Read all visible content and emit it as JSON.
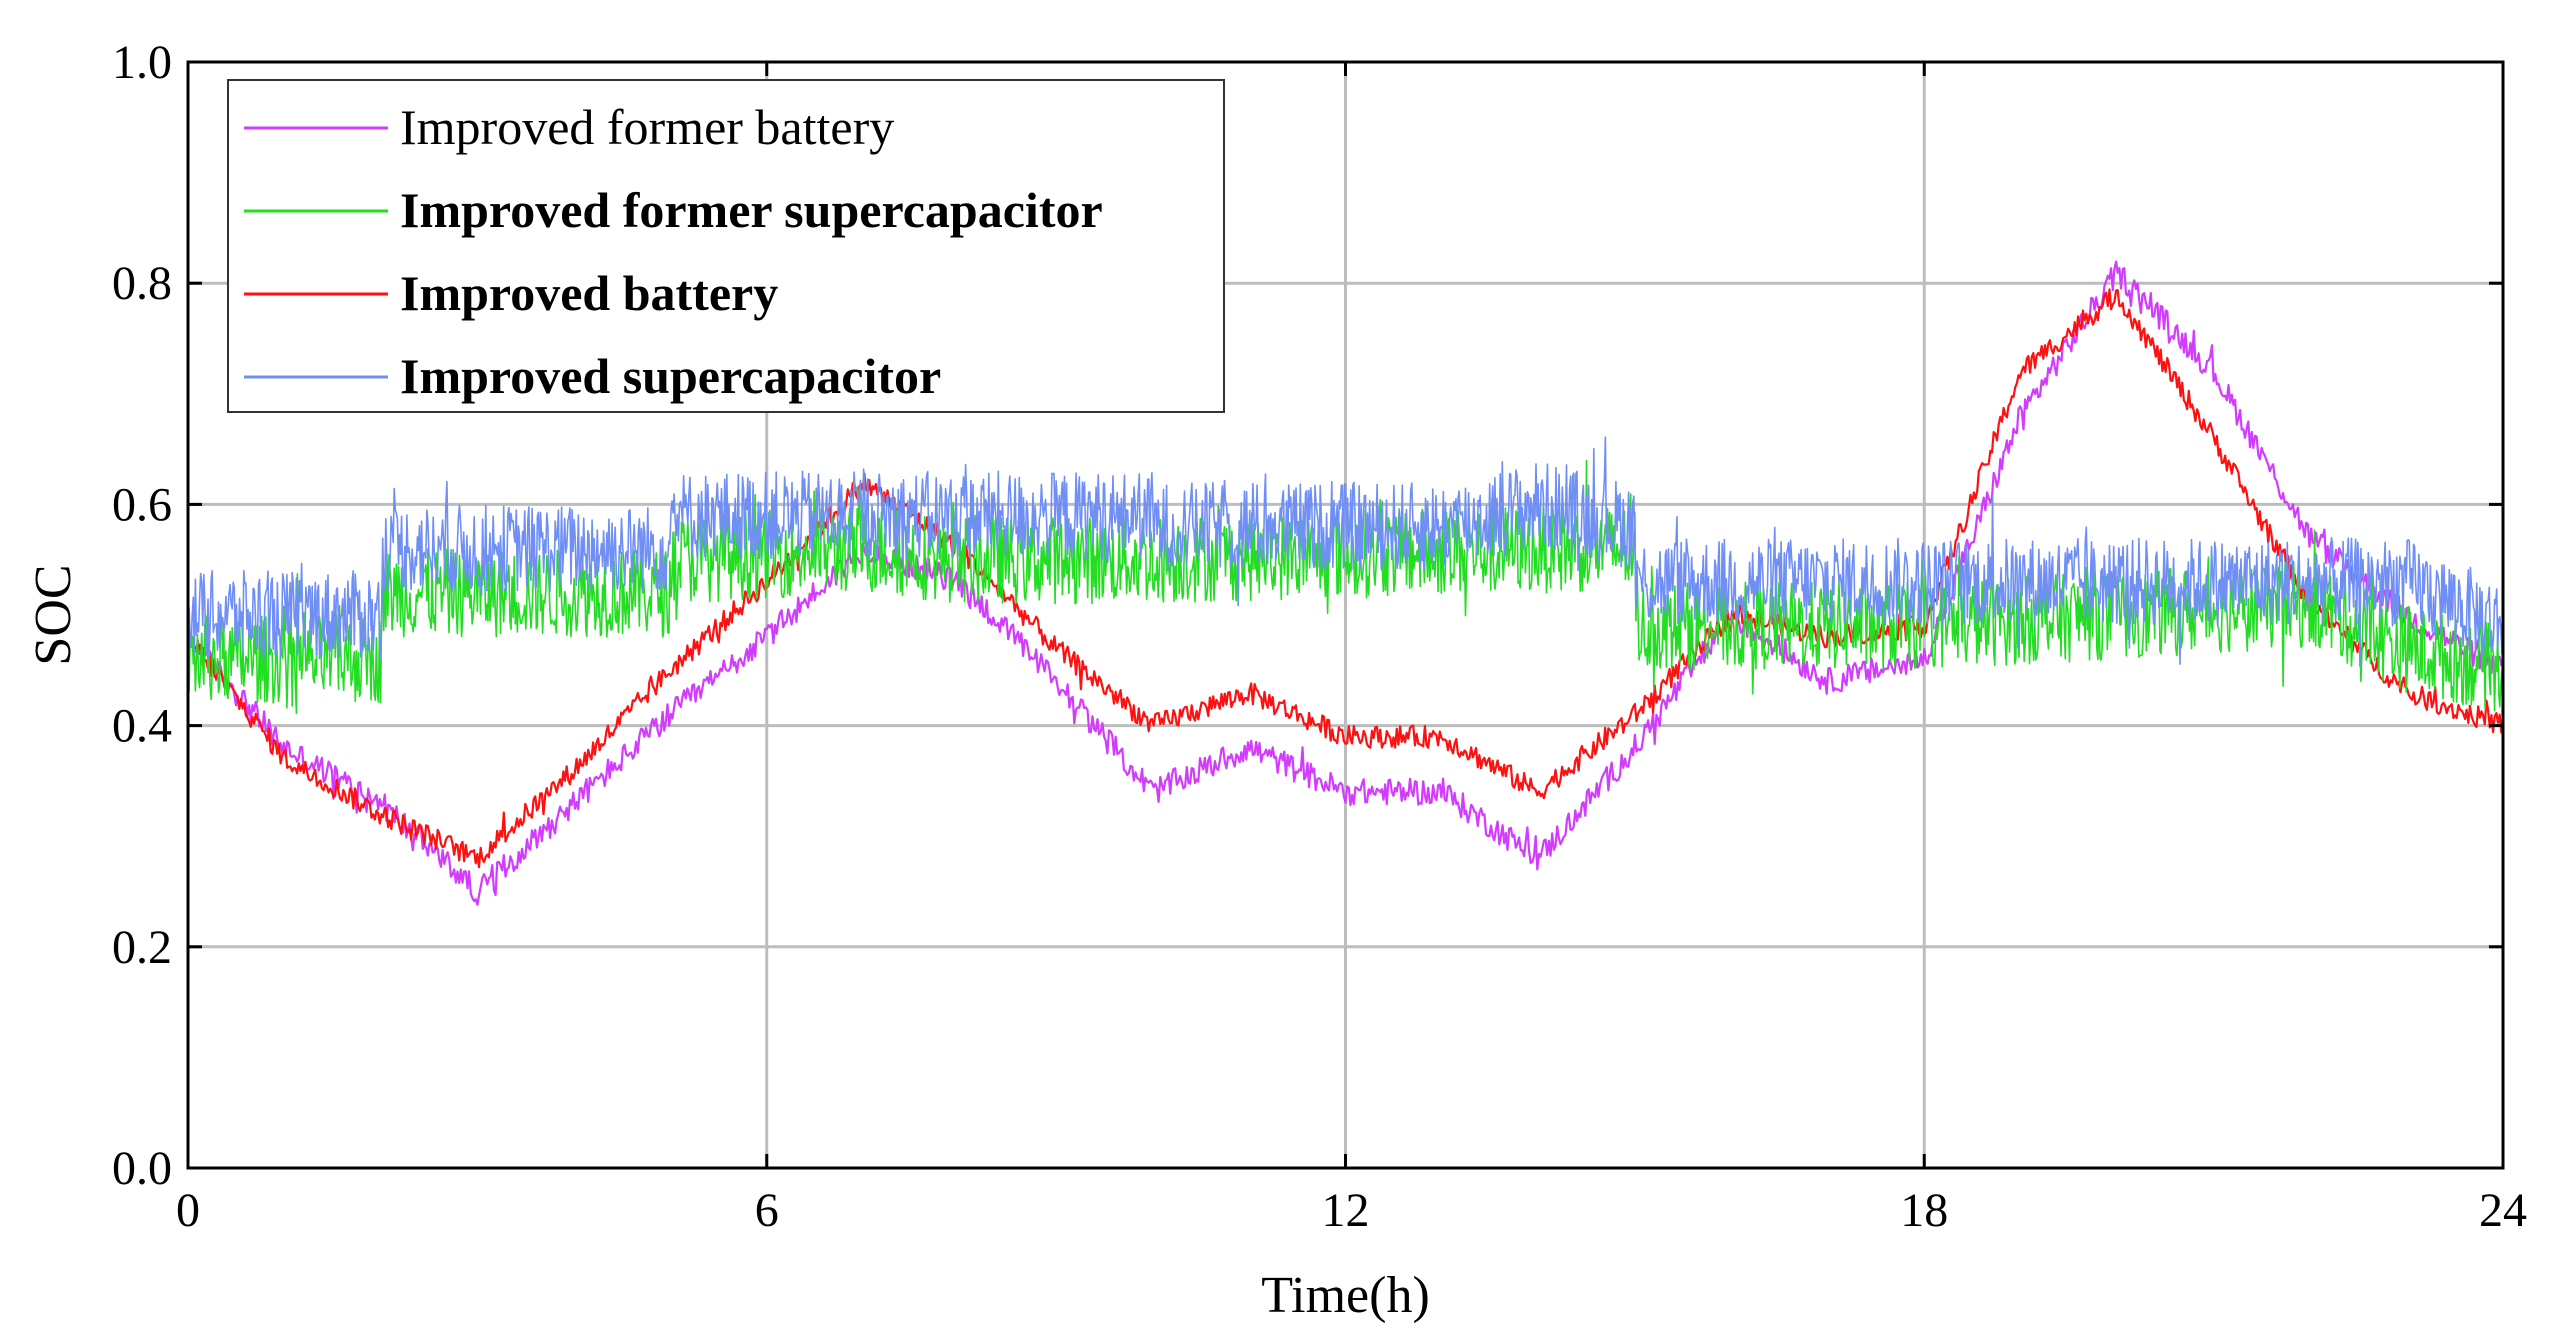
{
  "chart_data": {
    "type": "line",
    "title": "",
    "xlabel": "Time(h)",
    "ylabel": "SOC",
    "xlim": [
      0,
      24
    ],
    "ylim": [
      0.0,
      1.0
    ],
    "xticks": [
      0,
      6,
      12,
      18,
      24
    ],
    "xtick_labels": [
      "0",
      "6",
      "12",
      "18",
      "24"
    ],
    "yticks": [
      0.0,
      0.2,
      0.4,
      0.6,
      0.8,
      1.0
    ],
    "ytick_labels": [
      "0.0",
      "0.2",
      "0.4",
      "0.6",
      "0.8",
      "1.0"
    ],
    "grid": true,
    "legend_position": "top-left",
    "series": [
      {
        "name": "Improved former battery",
        "color": "#d23cff",
        "noise": 0.012,
        "x": [
          0,
          1,
          2,
          3,
          4,
          5,
          6,
          7,
          8,
          9,
          10,
          11,
          12,
          13,
          14,
          15,
          16,
          17,
          18,
          19,
          20,
          21,
          22,
          23,
          24
        ],
        "y": [
          0.48,
          0.38,
          0.33,
          0.25,
          0.33,
          0.41,
          0.48,
          0.56,
          0.53,
          0.44,
          0.34,
          0.38,
          0.34,
          0.34,
          0.28,
          0.38,
          0.5,
          0.44,
          0.46,
          0.68,
          0.81,
          0.72,
          0.57,
          0.5,
          0.45
        ]
      },
      {
        "name": "Improved former supercapacitor",
        "color": "#22dd22",
        "noise": 0.04,
        "x": [
          0,
          2,
          2.01,
          5,
          5.01,
          7,
          8,
          9,
          10,
          14,
          15,
          15.01,
          18,
          20,
          22,
          23,
          24
        ],
        "y": [
          0.46,
          0.46,
          0.52,
          0.52,
          0.55,
          0.56,
          0.55,
          0.55,
          0.55,
          0.56,
          0.56,
          0.49,
          0.49,
          0.5,
          0.51,
          0.47,
          0.45
        ]
      },
      {
        "name": "Improved battery",
        "color": "#ff1111",
        "noise": 0.01,
        "x": [
          0,
          1,
          2,
          3,
          4,
          5,
          6,
          7,
          8,
          9,
          10,
          11,
          12,
          13,
          14,
          15,
          16,
          17,
          18,
          19,
          20,
          21,
          22,
          23,
          24
        ],
        "y": [
          0.48,
          0.37,
          0.32,
          0.28,
          0.36,
          0.45,
          0.53,
          0.62,
          0.56,
          0.47,
          0.4,
          0.43,
          0.39,
          0.39,
          0.34,
          0.41,
          0.5,
          0.48,
          0.49,
          0.72,
          0.79,
          0.66,
          0.51,
          0.43,
          0.4
        ]
      },
      {
        "name": "Improved supercapacitor",
        "color": "#6f8ff5",
        "noise": 0.04,
        "x": [
          0,
          2,
          2.01,
          5,
          5.01,
          10,
          10.01,
          13,
          14,
          15,
          15.01,
          23,
          24
        ],
        "y": [
          0.5,
          0.5,
          0.56,
          0.56,
          0.59,
          0.59,
          0.58,
          0.58,
          0.6,
          0.58,
          0.53,
          0.53,
          0.49
        ]
      }
    ]
  }
}
